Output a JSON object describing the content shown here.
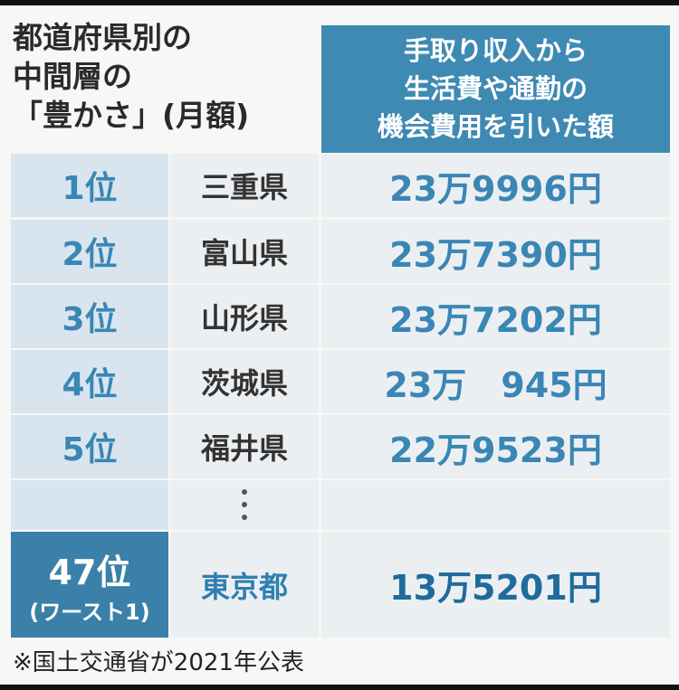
{
  "title": {
    "lines": [
      "都道府県別の",
      "中間層の",
      "「豊かさ」(月額)"
    ]
  },
  "header": {
    "lines": [
      "手取り収入から",
      "生活費や通勤の",
      "機会費用を引いた額"
    ]
  },
  "table": {
    "rows": [
      {
        "rank": "1位",
        "prefecture": "三重県",
        "amount": "23万9996円"
      },
      {
        "rank": "2位",
        "prefecture": "富山県",
        "amount": "23万7390円"
      },
      {
        "rank": "3位",
        "prefecture": "山形県",
        "amount": "23万7202円"
      },
      {
        "rank": "4位",
        "prefecture": "茨城県",
        "amount": "23万　945円"
      },
      {
        "rank": "5位",
        "prefecture": "福井県",
        "amount": "22万9523円"
      }
    ],
    "last_row": {
      "rank": "47位",
      "rank_note": "(ワースト1)",
      "prefecture": "東京都",
      "amount": "13万5201円"
    }
  },
  "footnote": "※国土交通省が2021年公表"
}
